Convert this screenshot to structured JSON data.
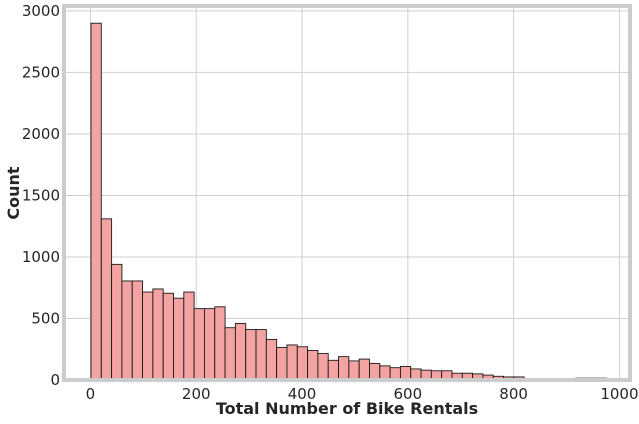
{
  "chart_data": {
    "type": "bar",
    "subtype": "histogram",
    "title": "",
    "xlabel": "Total Number of Bike Rentals",
    "ylabel": "Count",
    "xlim": [
      -50,
      1020
    ],
    "ylim": [
      0,
      3040
    ],
    "xticks": [
      0,
      200,
      400,
      600,
      800,
      1000
    ],
    "yticks": [
      0,
      500,
      1000,
      1500,
      2000,
      2500,
      3000
    ],
    "grid": true,
    "bar_color": "#f4a3a3",
    "edge_color": "#1a1a1a",
    "bin_width": 19.5,
    "bins_start": 1,
    "counts": [
      2900,
      1310,
      940,
      805,
      805,
      715,
      740,
      705,
      665,
      715,
      580,
      580,
      595,
      425,
      460,
      410,
      410,
      330,
      265,
      285,
      270,
      240,
      215,
      160,
      190,
      155,
      170,
      135,
      115,
      100,
      110,
      90,
      80,
      75,
      75,
      55,
      55,
      50,
      40,
      30,
      25,
      25,
      0,
      0,
      0,
      0,
      0,
      15,
      15,
      15,
      0
    ]
  }
}
